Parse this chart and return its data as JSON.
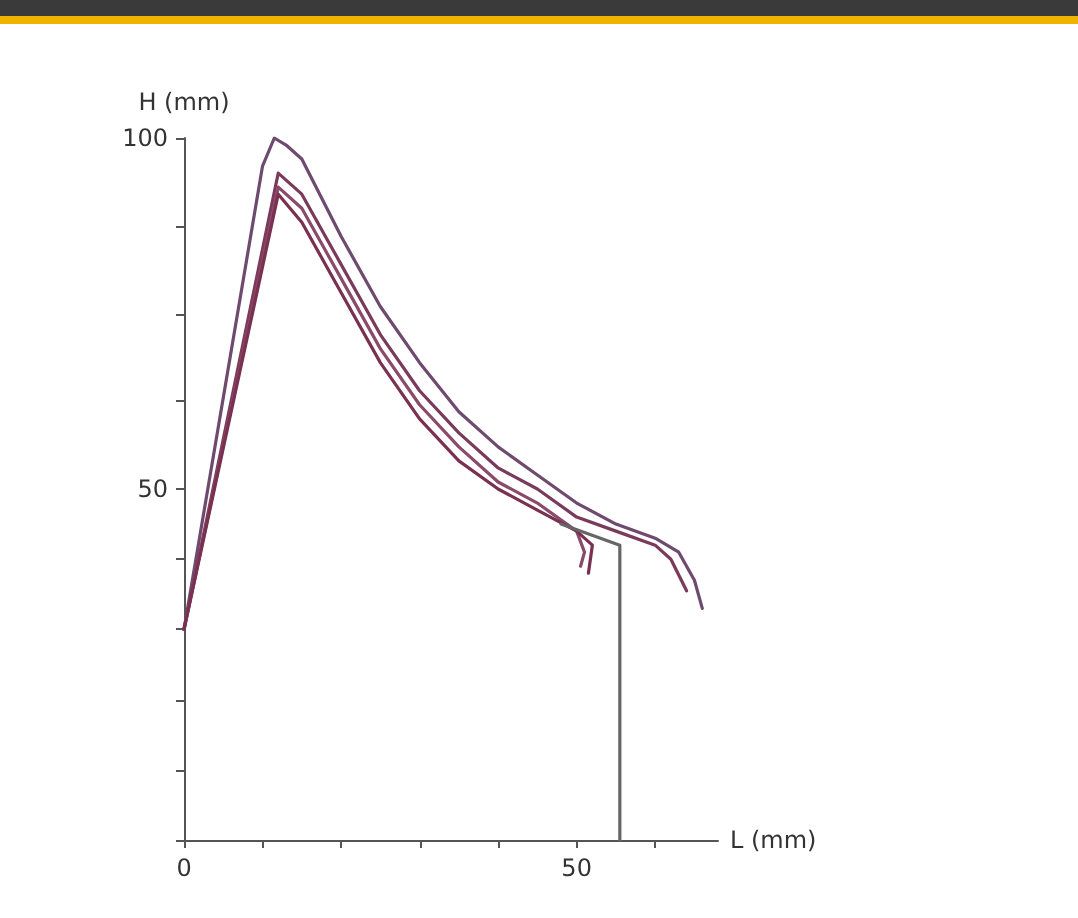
{
  "chart_data": {
    "type": "line",
    "xlabel": "L (mm)",
    "ylabel": "H (mm)",
    "grid": false,
    "marker": "none",
    "line_style": "solid",
    "xlim": [
      0,
      68
    ],
    "xticks": [
      {
        "value": 0,
        "label": "0"
      },
      {
        "value": 10,
        "label": null
      },
      {
        "value": 20,
        "label": null
      },
      {
        "value": 30,
        "label": null
      },
      {
        "value": 40,
        "label": null
      },
      50,
      {
        "value": 60,
        "label": null
      }
    ],
    "ylim": [
      0,
      100
    ],
    "yticks": [
      {
        "value": 0,
        "label": null
      },
      {
        "value": 10,
        "label": null
      },
      {
        "value": 20,
        "label": null
      },
      {
        "value": 30,
        "label": null
      },
      {
        "value": 40,
        "label": null
      },
      50,
      {
        "value": 62.5,
        "label": null
      },
      {
        "value": 75,
        "label": null
      },
      {
        "value": 87.5,
        "label": null
      },
      100
    ],
    "series": [
      {
        "color": "#6e4a6e",
        "x": [
          0,
          10,
          11.5,
          13,
          15,
          20,
          25,
          30,
          35,
          40,
          45,
          50,
          55,
          60,
          63,
          65,
          66
        ],
        "values": [
          30,
          96,
          100,
          99,
          97,
          86,
          76,
          68,
          61,
          56,
          52,
          48,
          45,
          43,
          41,
          37,
          33
        ]
      },
      {
        "color": "#7a3a5a",
        "x": [
          0,
          12,
          15,
          20,
          25,
          30,
          35,
          40,
          45,
          50,
          55,
          60,
          62,
          64
        ],
        "values": [
          30,
          95,
          92,
          82,
          72,
          64,
          58,
          53,
          50,
          46,
          44,
          42,
          40,
          35.5
        ]
      },
      {
        "color": "#8a4a6a",
        "x": [
          0,
          12,
          15,
          20,
          25,
          30,
          35,
          40,
          45,
          50,
          51,
          50.5
        ],
        "values": [
          30,
          93,
          90,
          80,
          70,
          62,
          56,
          51,
          48,
          44,
          41,
          39
        ]
      },
      {
        "color": "#7a3050",
        "x": [
          0,
          12,
          15,
          20,
          25,
          30,
          35,
          40,
          45,
          50,
          52,
          51.5
        ],
        "values": [
          30,
          92,
          88,
          78,
          68,
          60,
          54,
          50,
          47,
          44,
          42,
          38
        ]
      },
      {
        "color": "#666666",
        "x": [
          48,
          55.5,
          55.5
        ],
        "values": [
          45,
          42,
          0
        ]
      }
    ]
  }
}
